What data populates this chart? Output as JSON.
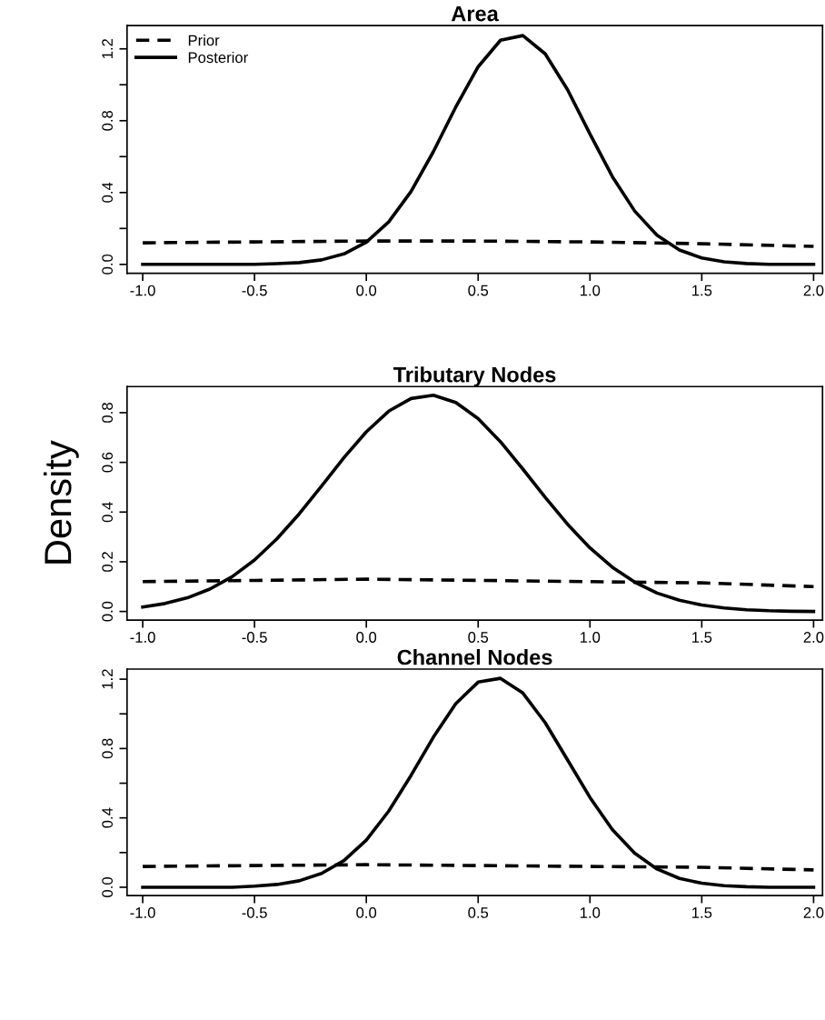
{
  "chart_data": [
    {
      "type": "line",
      "title": "Area",
      "legend": "top left",
      "xlim": [
        -1.07,
        2.04
      ],
      "xticks": [
        {
          "value": -1,
          "label": "-1.0"
        },
        {
          "value": -0.5,
          "label": "-0.5"
        },
        {
          "value": 0,
          "label": "0.0"
        },
        {
          "value": 0.5,
          "label": "0.5"
        },
        {
          "value": 1,
          "label": "1.0"
        },
        {
          "value": 1.5,
          "label": "1.5"
        },
        {
          "value": 2,
          "label": "2.0"
        }
      ],
      "ylim": [
        -0.05,
        1.33
      ],
      "yticks": [
        {
          "value": 0,
          "label": "0.0"
        },
        {
          "value": 0.2,
          "label": null
        },
        {
          "value": 0.4,
          "label": "0.4"
        },
        {
          "value": 0.6,
          "label": null
        },
        {
          "value": 0.8,
          "label": "0.8"
        },
        {
          "value": 1.0,
          "label": null
        },
        {
          "value": 1.2,
          "label": "1.2"
        }
      ],
      "series": [
        {
          "name": "Prior",
          "color": "#000000",
          "line_style": "dashed",
          "x": [
            -1,
            -0.5,
            0,
            0.5,
            1,
            1.5,
            2
          ],
          "values": [
            0.12,
            0.125,
            0.13,
            0.13,
            0.125,
            0.115,
            0.1
          ]
        },
        {
          "name": "Posterior",
          "color": "#000000",
          "line_style": "solid",
          "x": [
            -1,
            -0.9,
            -0.8,
            -0.7,
            -0.6,
            -0.5,
            -0.4,
            -0.3,
            -0.2,
            -0.1,
            0,
            0.1,
            0.2,
            0.3,
            0.4,
            0.5,
            0.6,
            0.7,
            0.8,
            0.9,
            1.0,
            1.1,
            1.2,
            1.3,
            1.4,
            1.5,
            1.6,
            1.7,
            1.8,
            1.9,
            2.0
          ],
          "values": [
            0,
            0,
            0,
            0,
            0,
            0,
            0.004,
            0.01,
            0.025,
            0.058,
            0.124,
            0.236,
            0.406,
            0.628,
            0.876,
            1.1,
            1.248,
            1.274,
            1.172,
            0.972,
            0.726,
            0.489,
            0.297,
            0.162,
            0.08,
            0.036,
            0.014,
            0.005,
            0,
            0,
            0
          ]
        }
      ]
    },
    {
      "type": "line",
      "title": "Tributary Nodes",
      "ylabel": "Density",
      "xlim": [
        -1.07,
        2.04
      ],
      "xticks": [
        {
          "value": -1,
          "label": "-1.0"
        },
        {
          "value": -0.5,
          "label": "-0.5"
        },
        {
          "value": 0,
          "label": "0.0"
        },
        {
          "value": 0.5,
          "label": "0.5"
        },
        {
          "value": 1,
          "label": "1.0"
        },
        {
          "value": 1.5,
          "label": "1.5"
        },
        {
          "value": 2,
          "label": "2.0"
        }
      ],
      "ylim": [
        -0.035,
        0.905
      ],
      "yticks": [
        {
          "value": 0,
          "label": "0.0"
        },
        {
          "value": 0.2,
          "label": "0.2"
        },
        {
          "value": 0.4,
          "label": "0.4"
        },
        {
          "value": 0.6,
          "label": "0.6"
        },
        {
          "value": 0.8,
          "label": "0.8"
        }
      ],
      "series": [
        {
          "color": "#000000",
          "line_style": "dashed",
          "x": [
            -1,
            -0.5,
            0,
            0.5,
            1,
            1.5,
            2
          ],
          "values": [
            0.12,
            0.125,
            0.13,
            0.125,
            0.12,
            0.115,
            0.1
          ]
        },
        {
          "color": "#000000",
          "line_style": "solid",
          "x": [
            -1,
            -0.9,
            -0.8,
            -0.7,
            -0.6,
            -0.5,
            -0.4,
            -0.3,
            -0.2,
            -0.1,
            0,
            0.1,
            0.2,
            0.3,
            0.4,
            0.5,
            0.6,
            0.7,
            0.8,
            0.9,
            1.0,
            1.1,
            1.2,
            1.3,
            1.4,
            1.5,
            1.6,
            1.7,
            1.8,
            1.9,
            2.0
          ],
          "values": [
            0.018,
            0.032,
            0.055,
            0.09,
            0.14,
            0.207,
            0.292,
            0.393,
            0.505,
            0.619,
            0.723,
            0.806,
            0.857,
            0.87,
            0.841,
            0.776,
            0.683,
            0.573,
            0.459,
            0.351,
            0.256,
            0.178,
            0.118,
            0.074,
            0.045,
            0.026,
            0.014,
            0.007,
            0.003,
            0.001,
            0
          ]
        }
      ]
    },
    {
      "type": "line",
      "title": "Channel Nodes",
      "xlim": [
        -1.07,
        2.04
      ],
      "xticks": [
        {
          "value": -1,
          "label": "-1.0"
        },
        {
          "value": -0.5,
          "label": "-0.5"
        },
        {
          "value": 0,
          "label": "0.0"
        },
        {
          "value": 0.5,
          "label": "0.5"
        },
        {
          "value": 1,
          "label": "1.0"
        },
        {
          "value": 1.5,
          "label": "1.5"
        },
        {
          "value": 2,
          "label": "2.0"
        }
      ],
      "ylim": [
        -0.048,
        1.258
      ],
      "yticks": [
        {
          "value": 0,
          "label": "0.0"
        },
        {
          "value": 0.2,
          "label": null
        },
        {
          "value": 0.4,
          "label": "0.4"
        },
        {
          "value": 0.6,
          "label": null
        },
        {
          "value": 0.8,
          "label": "0.8"
        },
        {
          "value": 1.0,
          "label": null
        },
        {
          "value": 1.2,
          "label": "1.2"
        }
      ],
      "series": [
        {
          "color": "#000000",
          "line_style": "dashed",
          "x": [
            -1,
            -0.5,
            0,
            0.5,
            1,
            1.5,
            2
          ],
          "values": [
            0.12,
            0.125,
            0.13,
            0.125,
            0.12,
            0.115,
            0.1
          ]
        },
        {
          "color": "#000000",
          "line_style": "solid",
          "x": [
            -1,
            -0.9,
            -0.8,
            -0.7,
            -0.6,
            -0.5,
            -0.4,
            -0.3,
            -0.2,
            -0.1,
            0,
            0.1,
            0.2,
            0.3,
            0.4,
            0.5,
            0.6,
            0.7,
            0.8,
            0.9,
            1.0,
            1.1,
            1.2,
            1.3,
            1.4,
            1.5,
            1.6,
            1.7,
            1.8,
            1.9,
            2.0
          ],
          "values": [
            0,
            0,
            0,
            0,
            0,
            0.006,
            0.016,
            0.037,
            0.08,
            0.154,
            0.272,
            0.439,
            0.645,
            0.866,
            1.059,
            1.183,
            1.205,
            1.12,
            0.949,
            0.734,
            0.518,
            0.333,
            0.196,
            0.105,
            0.051,
            0.023,
            0.009,
            0.003,
            0,
            0,
            0
          ]
        }
      ]
    }
  ]
}
